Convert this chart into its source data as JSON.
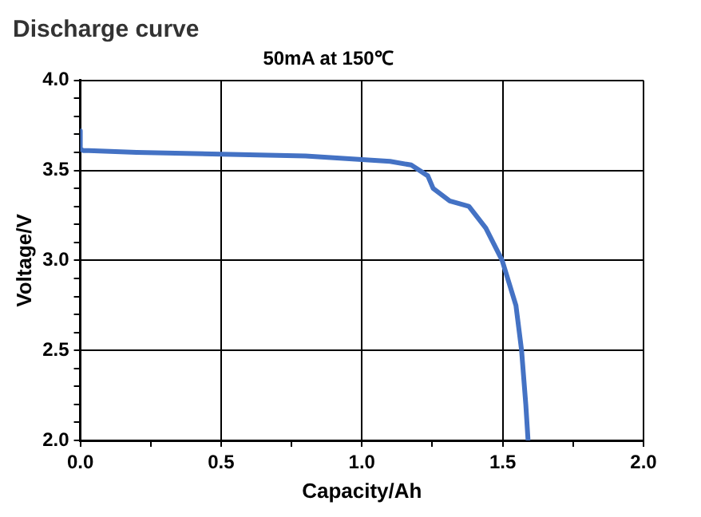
{
  "chart_data": {
    "type": "line",
    "title": "Discharge curve",
    "subtitle": "50mA at 150℃",
    "xlabel": "Capacity/Ah",
    "ylabel": "Voltage/V",
    "xlim": [
      0,
      2
    ],
    "ylim": [
      2,
      4
    ],
    "xticks": [
      {
        "value": 0,
        "label": "0.0"
      },
      {
        "value": 0.25,
        "label": null
      },
      {
        "value": 0.5,
        "label": "0.5"
      },
      {
        "value": 0.75,
        "label": null
      },
      {
        "value": 1,
        "label": "1.0"
      },
      {
        "value": 1.25,
        "label": null
      },
      {
        "value": 1.5,
        "label": "1.5"
      },
      {
        "value": 1.75,
        "label": null
      },
      {
        "value": 2,
        "label": "2.0"
      }
    ],
    "yticks": [
      {
        "value": 2,
        "label": "2.0"
      },
      {
        "value": 2.1,
        "label": null
      },
      {
        "value": 2.2,
        "label": null
      },
      {
        "value": 2.3,
        "label": null
      },
      {
        "value": 2.4,
        "label": null
      },
      {
        "value": 2.5,
        "label": "2.5"
      },
      {
        "value": 2.6,
        "label": null
      },
      {
        "value": 2.7,
        "label": null
      },
      {
        "value": 2.8,
        "label": null
      },
      {
        "value": 2.9,
        "label": null
      },
      {
        "value": 3,
        "label": "3.0"
      },
      {
        "value": 3.1,
        "label": null
      },
      {
        "value": 3.2,
        "label": null
      },
      {
        "value": 3.3,
        "label": null
      },
      {
        "value": 3.4,
        "label": null
      },
      {
        "value": 3.5,
        "label": "3.5"
      },
      {
        "value": 3.6,
        "label": null
      },
      {
        "value": 3.7,
        "label": null
      },
      {
        "value": 3.8,
        "label": null
      },
      {
        "value": 3.9,
        "label": null
      },
      {
        "value": 4,
        "label": "4.0"
      }
    ],
    "grid": true,
    "marker": "none",
    "line_style": "solid",
    "series": [
      {
        "color": "#4472c4",
        "x": [
          0,
          0,
          0.01,
          0.03,
          0.2,
          0.5,
          0.8,
          1.0,
          1.1,
          1.175,
          1.234,
          1.253,
          1.312,
          1.38,
          1.44,
          1.498,
          1.547,
          1.567,
          1.582,
          1.59
        ],
        "values": [
          3.72,
          3.62,
          3.61,
          3.61,
          3.6,
          3.59,
          3.58,
          3.56,
          3.55,
          3.53,
          3.47,
          3.4,
          3.33,
          3.3,
          3.18,
          3.0,
          2.75,
          2.5,
          2.2,
          2.0
        ]
      }
    ]
  }
}
